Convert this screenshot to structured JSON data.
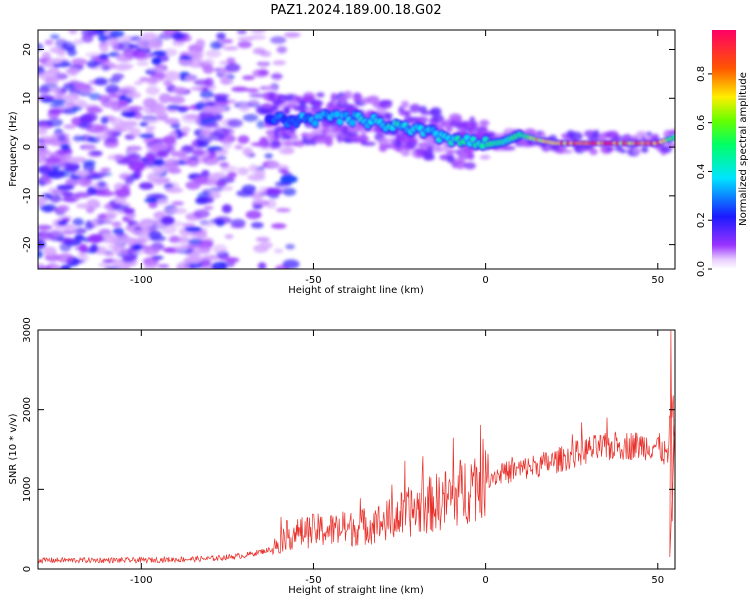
{
  "title": "PAZ1.2024.189.00.18.G02",
  "chart_data": [
    {
      "type": "heatmap",
      "xlabel": "Height of straight line (km)",
      "ylabel": "Frequency (Hz)",
      "xlim": [
        -130,
        55
      ],
      "ylim": [
        -25,
        24
      ],
      "xticks": [
        -100,
        -50,
        0,
        50
      ],
      "yticks": [
        -20,
        -10,
        0,
        10,
        20
      ],
      "colorbar": {
        "label": "Normalized spectral amplitude",
        "range": [
          0,
          0.98
        ],
        "ticks": [
          "0.0",
          "0.2",
          "0.4",
          "0.6",
          "0.8"
        ],
        "colormap": "gist_rainbow-like (white/violet low → red high)"
      },
      "ridge": {
        "x": [
          -63,
          -55,
          -45,
          -35,
          -25,
          -15,
          -5,
          0,
          5,
          10,
          15,
          20,
          30,
          40,
          50,
          55
        ],
        "frequency": [
          5.5,
          5.5,
          6.0,
          5.5,
          4.0,
          2.5,
          1.0,
          0.5,
          1.0,
          2.5,
          1.5,
          0.8,
          0.8,
          0.8,
          0.8,
          2.0
        ],
        "amplitude": [
          0.25,
          0.35,
          0.4,
          0.45,
          0.45,
          0.4,
          0.5,
          0.55,
          0.5,
          0.55,
          0.75,
          0.9,
          0.92,
          0.92,
          0.9,
          0.6
        ]
      },
      "noise_region": {
        "x_range": [
          -130,
          -60
        ],
        "frequency_range": [
          -25,
          24
        ],
        "amplitude_range": [
          0.05,
          0.25
        ]
      }
    },
    {
      "type": "line",
      "xlabel": "Height of straight line (km)",
      "ylabel": "SNR (10 * v/v)",
      "xlim": [
        -130,
        55
      ],
      "ylim": [
        0,
        3000
      ],
      "xticks": [
        -100,
        -50,
        0,
        50
      ],
      "yticks": [
        0,
        1000,
        2000,
        3000
      ],
      "color": "#e8302a",
      "trend": {
        "x": [
          -130,
          -100,
          -80,
          -70,
          -62,
          -58,
          -50,
          -40,
          -30,
          -20,
          -10,
          0,
          10,
          20,
          30,
          40,
          50,
          53,
          54,
          55
        ],
        "mean": [
          110,
          110,
          130,
          170,
          250,
          420,
          480,
          500,
          580,
          750,
          900,
          1150,
          1250,
          1350,
          1500,
          1550,
          1550,
          1400,
          2200,
          1700
        ]
      }
    }
  ]
}
